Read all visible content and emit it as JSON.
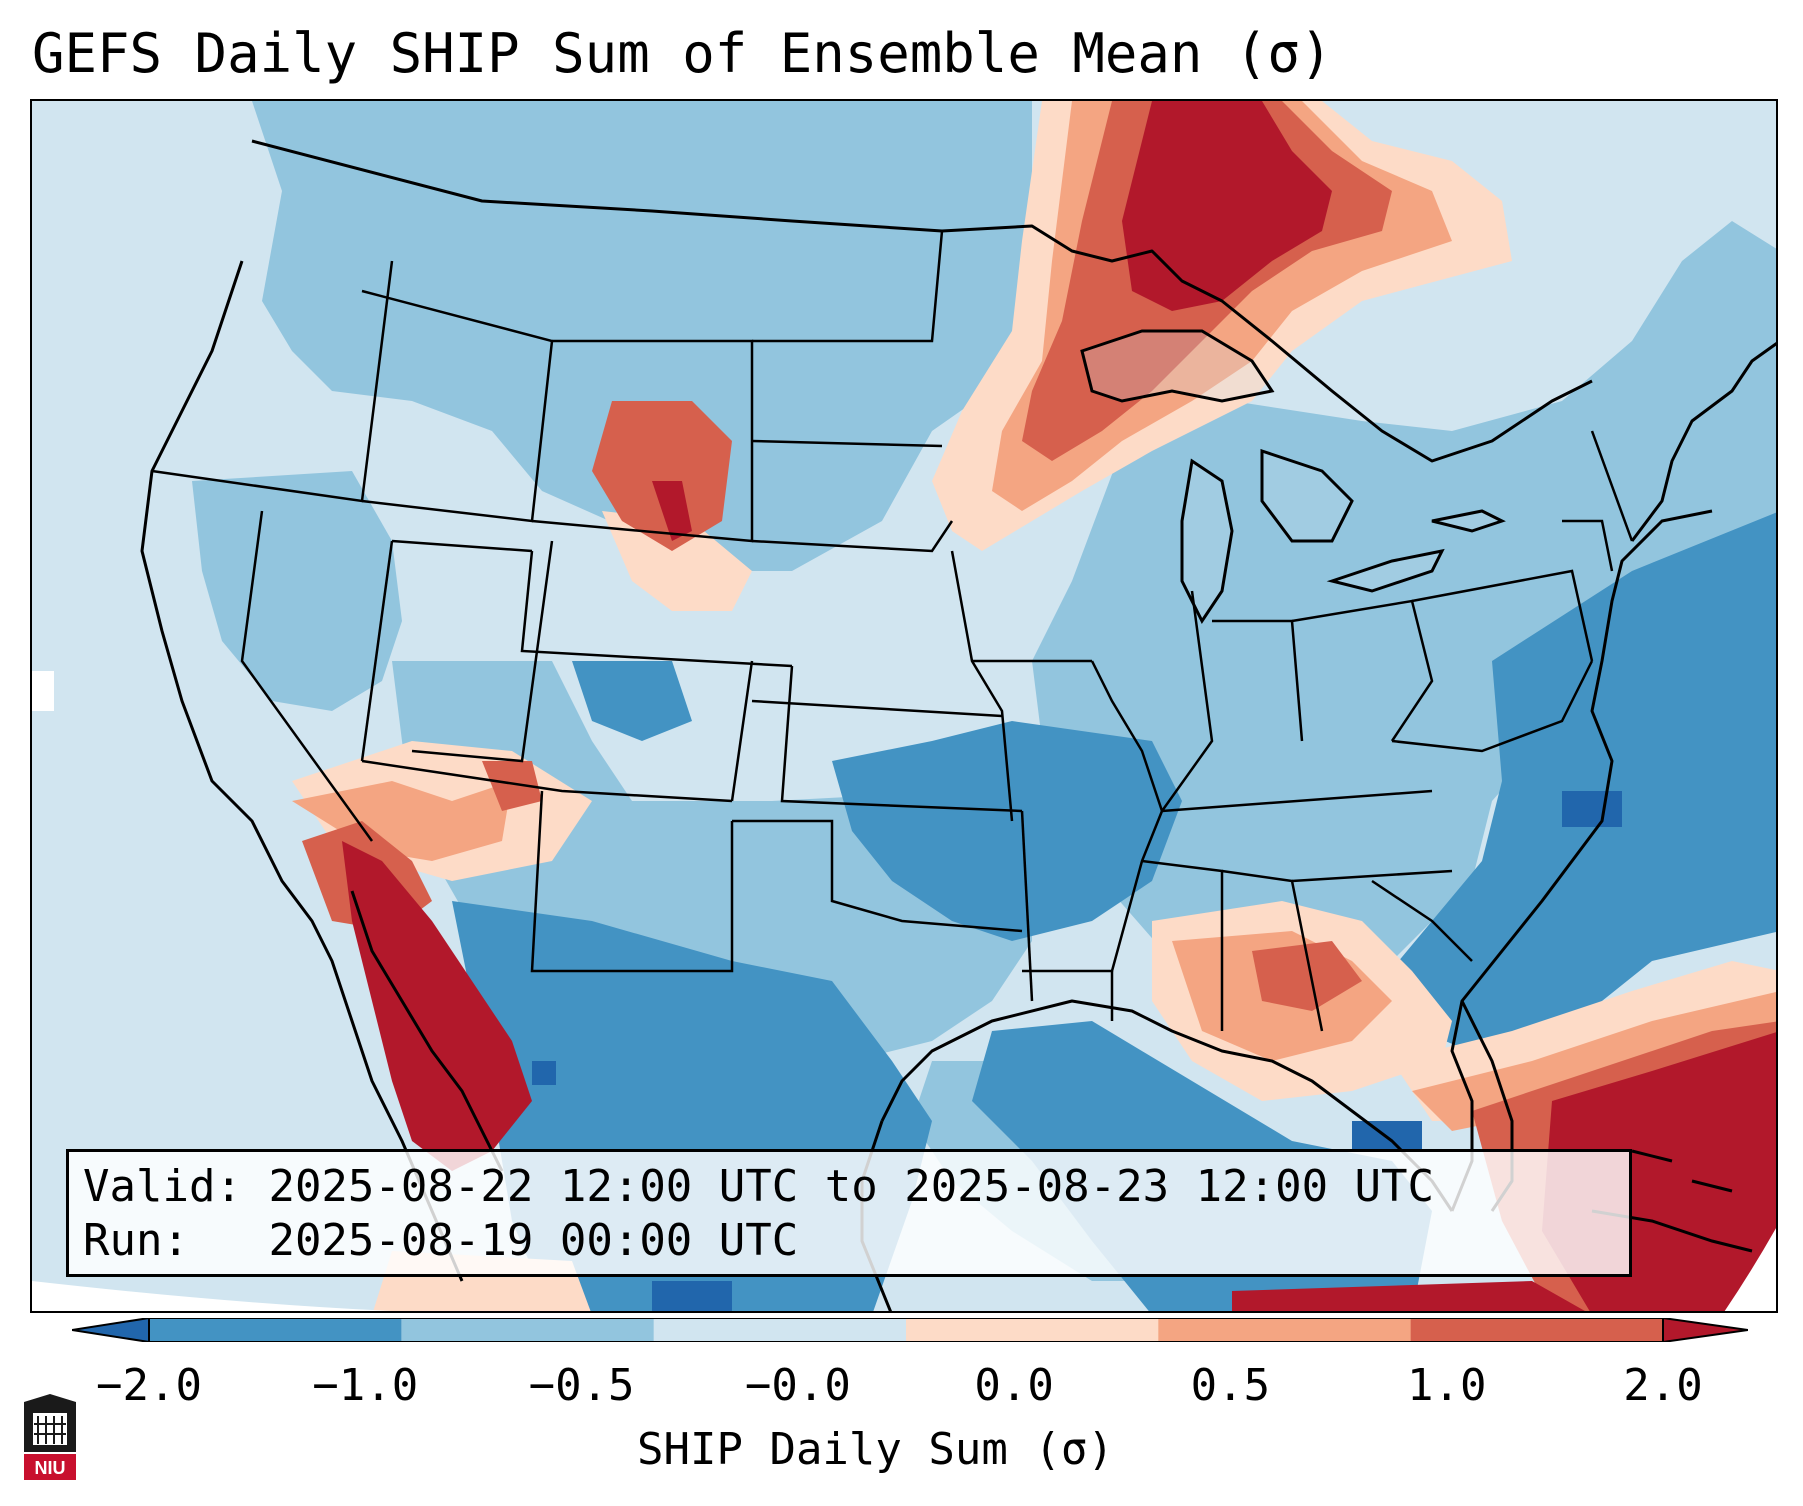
{
  "title": "GEFS Daily SHIP Sum of Ensemble Mean (σ)",
  "info": {
    "valid_label": "Valid:",
    "valid_value": "2025-08-22 12:00 UTC to 2025-08-23 12:00 UTC",
    "run_label": "Run:",
    "run_value": "2025-08-19 00:00 UTC"
  },
  "colorbar": {
    "label": "SHIP Daily Sum (σ)",
    "ticks": [
      "−2.0",
      "−1.0",
      "−0.5",
      "−0.0",
      "0.0",
      "0.5",
      "1.0",
      "2.0"
    ],
    "colors": [
      "#2166ac",
      "#4393c3",
      "#92c5de",
      "#d1e5f0",
      "#fddbc7",
      "#f4a582",
      "#d6604d",
      "#b2182b"
    ]
  },
  "legend_colors": {
    "strong_negative": "#2166ac",
    "negative": "#4393c3",
    "weak_negative": "#92c5de",
    "near_zero_negative": "#d1e5f0",
    "near_zero_positive": "#fddbc7",
    "weak_positive": "#f4a582",
    "positive": "#d6604d",
    "strong_positive": "#b2182b"
  },
  "logo": {
    "name": "university-shield-logo",
    "text": "NIU"
  }
}
